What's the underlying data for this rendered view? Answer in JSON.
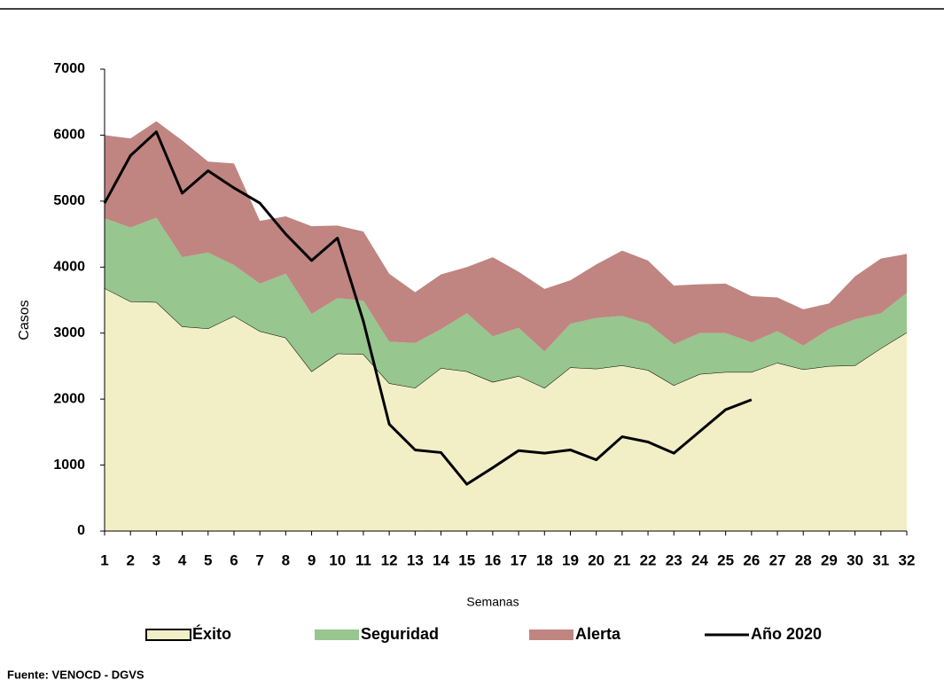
{
  "chart_data": {
    "type": "stacked-area-line",
    "x_label": "Semanas",
    "y_label": "Casos",
    "source": "Fuente: VENOCD - DGVS",
    "categories": [
      "1",
      "2",
      "3",
      "4",
      "5",
      "6",
      "7",
      "8",
      "9",
      "10",
      "11",
      "12",
      "13",
      "14",
      "15",
      "16",
      "17",
      "18",
      "19",
      "20",
      "21",
      "22",
      "23",
      "24",
      "25",
      "26",
      "27",
      "28",
      "29",
      "30",
      "31",
      "32"
    ],
    "ylim": [
      0,
      7000
    ],
    "yticks": [
      0,
      1000,
      2000,
      3000,
      4000,
      5000,
      6000,
      7000
    ],
    "series": [
      {
        "name": "Éxito",
        "color": "#f2efc6",
        "kind": "area",
        "values": [
          3680,
          3480,
          3470,
          3100,
          3070,
          3260,
          3030,
          2930,
          2420,
          2690,
          2680,
          2240,
          2170,
          2470,
          2420,
          2260,
          2350,
          2170,
          2480,
          2460,
          2510,
          2440,
          2210,
          2380,
          2410,
          2410,
          2550,
          2450,
          2500,
          2510,
          2770,
          3010
        ]
      },
      {
        "name": "Seguridad",
        "color": "#97c68f",
        "kind": "area",
        "values": [
          1060,
          1120,
          1280,
          1050,
          1150,
          770,
          720,
          970,
          870,
          840,
          810,
          630,
          680,
          590,
          880,
          690,
          730,
          550,
          660,
          770,
          750,
          700,
          620,
          620,
          590,
          450,
          480,
          360,
          560,
          700,
          530,
          600
        ]
      },
      {
        "name": "Alerta",
        "color": "#c08581",
        "kind": "area",
        "values": [
          1260,
          1350,
          1460,
          1770,
          1380,
          1540,
          950,
          870,
          1330,
          1100,
          1050,
          1030,
          770,
          830,
          700,
          1200,
          850,
          950,
          660,
          810,
          990,
          960,
          890,
          740,
          750,
          700,
          510,
          550,
          390,
          650,
          830,
          590
        ]
      },
      {
        "name": "Año 2020",
        "color": "#000000",
        "kind": "line",
        "values": [
          4970,
          5690,
          6050,
          5120,
          5460,
          5200,
          4970,
          4500,
          4100,
          4440,
          3180,
          1620,
          1230,
          1190,
          710,
          960,
          1220,
          1180,
          1230,
          1080,
          1430,
          1350,
          1180,
          1510,
          1840,
          1990,
          null,
          null,
          null,
          null,
          null,
          null
        ]
      }
    ]
  }
}
